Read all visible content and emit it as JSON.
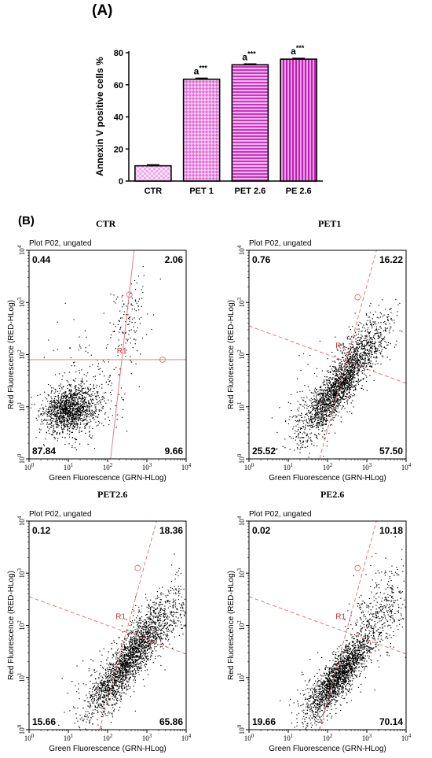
{
  "panel_a_label": "(A)",
  "panel_b_label": "(B)",
  "chart_data": [
    {
      "type": "bar",
      "ylabel": "Annexin V positive cells %",
      "ylim": [
        0,
        80
      ],
      "yticks": [
        "0",
        "20",
        "40",
        "60",
        "80"
      ],
      "categories": [
        "CTR",
        "PET 1",
        "PET 2.6",
        "PE 2.6"
      ],
      "values": [
        9.5,
        63.5,
        72.5,
        76
      ],
      "errors": [
        0.6,
        0.6,
        0.5,
        0.5
      ],
      "significance": [
        "",
        "a",
        "a",
        "a"
      ],
      "significance_sup": [
        "",
        "***",
        "***",
        "***"
      ],
      "colors": {
        "light": "#f3a9ec",
        "medium": "#e16ad8",
        "strong": "#cc33c4",
        "dark": "#c21bb8"
      }
    },
    {
      "type": "scatter",
      "title": "CTR",
      "subtitle": "Plot P02, ungated",
      "region_label": "R1",
      "xlabel": "Green Fluorescence (GRN-HLog)",
      "ylabel": "Red Fluorescence (RED-HLog)",
      "xscale": "log",
      "yscale": "log",
      "xlim": [
        1,
        10000
      ],
      "ylim": [
        1,
        10000
      ],
      "quadrants": {
        "upper_left": "0.44",
        "upper_right": "2.06",
        "lower_left": "87.84",
        "lower_right": "9.66"
      },
      "gate": {
        "x": 150,
        "y": 80,
        "style": "straight"
      }
    },
    {
      "type": "scatter",
      "title": "PET1",
      "subtitle": "Plot P02, ungated",
      "region_label": "R1",
      "xlabel": "Green Fluorescence (GRN-HLog)",
      "ylabel": "Red Fluorescence (RED-HLog)",
      "xscale": "log",
      "yscale": "log",
      "xlim": [
        1,
        10000
      ],
      "ylim": [
        1,
        10000
      ],
      "quadrants": {
        "upper_left": "0.76",
        "upper_right": "16.22",
        "lower_left": "25.52",
        "lower_right": "57.50"
      },
      "gate": {
        "x": 140,
        "y": 100,
        "style": "tilted"
      }
    },
    {
      "type": "scatter",
      "title": "PET2.6",
      "subtitle": "Plot P02, ungated",
      "region_label": "R1",
      "xlabel": "Green Fluorescence (GRN-HLog)",
      "ylabel": "Red Fluorescence (RED-HLog)",
      "xscale": "log",
      "yscale": "log",
      "xlim": [
        1,
        10000
      ],
      "ylim": [
        1,
        10000
      ],
      "quadrants": {
        "upper_left": "0.12",
        "upper_right": "18.36",
        "lower_left": "15.66",
        "lower_right": "65.86"
      },
      "gate": {
        "x": 140,
        "y": 100,
        "style": "tilted"
      }
    },
    {
      "type": "scatter",
      "title": "PE2.6",
      "subtitle": "Plot P02, ungated",
      "region_label": "R1",
      "xlabel": "Green Fluorescence (GRN-HLog)",
      "ylabel": "Red Fluorescence (RED-HLog)",
      "xscale": "log",
      "yscale": "log",
      "xlim": [
        1,
        10000
      ],
      "ylim": [
        1,
        10000
      ],
      "quadrants": {
        "upper_left": "0.02",
        "upper_right": "10.18",
        "lower_left": "19.66",
        "lower_right": "70.14"
      },
      "gate": {
        "x": 140,
        "y": 100,
        "style": "tilted"
      }
    }
  ]
}
